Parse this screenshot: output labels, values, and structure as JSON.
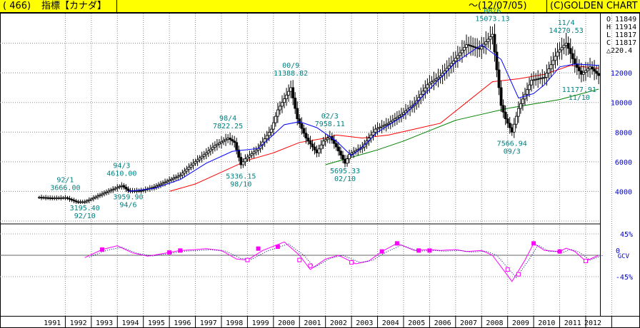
{
  "header": {
    "code": "( 466)",
    "name": "指標【カナダ】",
    "date": "～(12/07/05)",
    "brand": "(C)GOLDEN CHART"
  },
  "quote": {
    "open": "O 11849",
    "high": "H 11914",
    "low": "L 11817",
    "close": "C 11817",
    "change": "△220.4"
  },
  "colors": {
    "candle": "#000000",
    "ma_short": "#0000ff",
    "ma_mid": "#ff0000",
    "ma_long": "#008000",
    "gcv": "#ff00ff",
    "annotation": "#008080",
    "ylabel": "#0000cc"
  },
  "chart_data": [
    {
      "type": "line",
      "subtype": "candlestick-with-moving-averages",
      "x_axis": {
        "type": "date",
        "range": [
          "1991-01",
          "2012-07"
        ],
        "tick_labels": [
          "1991",
          "1992",
          "1993",
          "1994",
          "1995",
          "1996",
          "1997",
          "1998",
          "1999",
          "2000",
          "2001",
          "2002",
          "2003",
          "2004",
          "2005",
          "2006",
          "2007",
          "2008",
          "2009",
          "2010",
          "2011",
          "2012"
        ]
      },
      "y_axis": {
        "range": [
          2000,
          16000
        ],
        "tick_labels": [
          "4000",
          "6000",
          "8000",
          "10000",
          "12000"
        ],
        "position": "right"
      },
      "grid": true,
      "series": [
        {
          "kind": "price",
          "points": [
            [
              "1991-01",
              3600
            ],
            [
              "1991-07",
              3550
            ],
            [
              "1992-01",
              3580
            ],
            [
              "1992-06",
              3300
            ],
            [
              "1992-10",
              3300
            ],
            [
              "1993-01",
              3500
            ],
            [
              "1993-07",
              3900
            ],
            [
              "1994-03",
              4400
            ],
            [
              "1994-06",
              4050
            ],
            [
              "1994-12",
              4050
            ],
            [
              "1995-06",
              4300
            ],
            [
              "1995-12",
              4700
            ],
            [
              "1996-06",
              5100
            ],
            [
              "1996-12",
              5900
            ],
            [
              "1997-06",
              6600
            ],
            [
              "1997-10",
              7100
            ],
            [
              "1998-04",
              7600
            ],
            [
              "1998-07",
              7300
            ],
            [
              "1998-10",
              5800
            ],
            [
              "1998-12",
              6200
            ],
            [
              "1999-06",
              6900
            ],
            [
              "1999-12",
              8200
            ],
            [
              "2000-03",
              9500
            ],
            [
              "2000-09",
              11000
            ],
            [
              "2000-12",
              8900
            ],
            [
              "2001-04",
              7600
            ],
            [
              "2001-09",
              6600
            ],
            [
              "2001-12",
              7400
            ],
            [
              "2002-03",
              7700
            ],
            [
              "2002-06",
              7000
            ],
            [
              "2002-10",
              5900
            ],
            [
              "2002-12",
              6500
            ],
            [
              "2003-06",
              7000
            ],
            [
              "2003-12",
              8200
            ],
            [
              "2004-06",
              8600
            ],
            [
              "2004-12",
              9200
            ],
            [
              "2005-06",
              9900
            ],
            [
              "2005-12",
              11200
            ],
            [
              "2006-06",
              11800
            ],
            [
              "2006-12",
              12800
            ],
            [
              "2007-06",
              13900
            ],
            [
              "2007-12",
              13600
            ],
            [
              "2008-06",
              14600
            ],
            [
              "2008-10",
              9800
            ],
            [
              "2008-12",
              8900
            ],
            [
              "2009-03",
              8000
            ],
            [
              "2009-06",
              9600
            ],
            [
              "2009-12",
              11500
            ],
            [
              "2010-06",
              11700
            ],
            [
              "2010-12",
              13400
            ],
            [
              "2011-04",
              14000
            ],
            [
              "2011-08",
              12600
            ],
            [
              "2011-11",
              11900
            ],
            [
              "2012-03",
              12400
            ],
            [
              "2012-07",
              11817
            ]
          ]
        },
        {
          "kind": "ma_short",
          "points": [
            [
              "1994-06",
              4000
            ],
            [
              "1995-06",
              4200
            ],
            [
              "1996-06",
              4800
            ],
            [
              "1997-06",
              5900
            ],
            [
              "1998-06",
              6700
            ],
            [
              "1999-06",
              6900
            ],
            [
              "2000-06",
              8500
            ],
            [
              "2001-01",
              8700
            ],
            [
              "2001-09",
              8300
            ],
            [
              "2002-06",
              7400
            ],
            [
              "2003-01",
              6400
            ],
            [
              "2003-06",
              7000
            ],
            [
              "2004-01",
              8000
            ],
            [
              "2005-01",
              9100
            ],
            [
              "2006-01",
              10900
            ],
            [
              "2007-01",
              12700
            ],
            [
              "2008-01",
              13900
            ],
            [
              "2008-10",
              12900
            ],
            [
              "2009-06",
              10300
            ],
            [
              "2010-01",
              10600
            ],
            [
              "2010-06",
              11200
            ],
            [
              "2011-01",
              12400
            ],
            [
              "2011-08",
              12600
            ],
            [
              "2012-07",
              12500
            ]
          ]
        },
        {
          "kind": "ma_mid",
          "points": [
            [
              "1996-01",
              4000
            ],
            [
              "1997-01",
              4500
            ],
            [
              "1998-01",
              5300
            ],
            [
              "1999-01",
              6100
            ],
            [
              "2000-01",
              6600
            ],
            [
              "2001-01",
              7300
            ],
            [
              "2002-01",
              7600
            ],
            [
              "2002-06",
              7800
            ],
            [
              "2003-06",
              7600
            ],
            [
              "2004-06",
              7800
            ],
            [
              "2005-06",
              8200
            ],
            [
              "2006-06",
              8600
            ],
            [
              "2007-06",
              10000
            ],
            [
              "2008-06",
              11400
            ],
            [
              "2009-06",
              11600
            ],
            [
              "2010-06",
              11900
            ],
            [
              "2011-06",
              12500
            ],
            [
              "2012-07",
              12300
            ]
          ]
        },
        {
          "kind": "ma_long",
          "points": [
            [
              "2002-01",
              5800
            ],
            [
              "2003-01",
              6300
            ],
            [
              "2004-01",
              6800
            ],
            [
              "2005-01",
              7400
            ],
            [
              "2006-01",
              8100
            ],
            [
              "2007-01",
              8800
            ],
            [
              "2008-01",
              9200
            ],
            [
              "2009-01",
              9600
            ],
            [
              "2010-01",
              9900
            ],
            [
              "2011-01",
              10200
            ],
            [
              "2012-07",
              10900
            ]
          ]
        }
      ],
      "annotations": [
        {
          "date_label": "92/1",
          "value": "3666.00",
          "x": "1992-01",
          "y": 3666,
          "pos": "above"
        },
        {
          "date_label": "92/10",
          "value": "3195.40",
          "x": "1992-10",
          "y": 3195,
          "pos": "below"
        },
        {
          "date_label": "94/3",
          "value": "4610.00",
          "x": "1994-03",
          "y": 4610,
          "pos": "above"
        },
        {
          "date_label": "94/6",
          "value": "3959.90",
          "x": "1994-06",
          "y": 3960,
          "pos": "below"
        },
        {
          "date_label": "98/4",
          "value": "7822.25",
          "x": "1998-04",
          "y": 7822,
          "pos": "above"
        },
        {
          "date_label": "98/10",
          "value": "5336.15",
          "x": "1998-10",
          "y": 5336,
          "pos": "below"
        },
        {
          "date_label": "00/9",
          "value": "11388.82",
          "x": "2000-09",
          "y": 11389,
          "pos": "above"
        },
        {
          "date_label": "02/3",
          "value": "7958.11",
          "x": "2002-03",
          "y": 7958,
          "pos": "above"
        },
        {
          "date_label": "02/10",
          "value": "5695.33",
          "x": "2002-10",
          "y": 5695,
          "pos": "below"
        },
        {
          "date_label": "08/6",
          "value": "15073.13",
          "x": "2008-06",
          "y": 15073,
          "pos": "above"
        },
        {
          "date_label": "09/3",
          "value": "7566.94",
          "x": "2009-03",
          "y": 7567,
          "pos": "below"
        },
        {
          "date_label": "11/4",
          "value": "14270.53",
          "x": "2011-04",
          "y": 14271,
          "pos": "above"
        },
        {
          "date_label": "11/10",
          "value": "11177.91",
          "x": "2011-10",
          "y": 11178,
          "pos": "below"
        }
      ]
    },
    {
      "type": "line",
      "label": "GCV",
      "y_axis": {
        "range": [
          -60,
          60
        ],
        "tick_labels": [
          "45%",
          "0",
          "-45%"
        ],
        "position": "right"
      },
      "grid": true,
      "series": [
        {
          "kind": "gcv",
          "points": [
            [
              "1992-10",
              -5
            ],
            [
              "1993-06",
              12
            ],
            [
              "1994-01",
              20
            ],
            [
              "1994-08",
              5
            ],
            [
              "1995-03",
              -2
            ],
            [
              "1996-01",
              6
            ],
            [
              "1996-06",
              10
            ],
            [
              "1997-01",
              12
            ],
            [
              "1997-06",
              14
            ],
            [
              "1998-01",
              10
            ],
            [
              "1998-08",
              -8
            ],
            [
              "1999-01",
              -10
            ],
            [
              "1999-08",
              10
            ],
            [
              "2000-06",
              28
            ],
            [
              "2001-01",
              0
            ],
            [
              "2001-06",
              -30
            ],
            [
              "2002-01",
              -8
            ],
            [
              "2002-07",
              0
            ],
            [
              "2003-03",
              -18
            ],
            [
              "2003-09",
              -12
            ],
            [
              "2004-03",
              8
            ],
            [
              "2004-10",
              25
            ],
            [
              "2005-06",
              10
            ],
            [
              "2006-01",
              12
            ],
            [
              "2006-06",
              10
            ],
            [
              "2007-01",
              12
            ],
            [
              "2007-06",
              8
            ],
            [
              "2008-01",
              10
            ],
            [
              "2008-06",
              0
            ],
            [
              "2009-03",
              -55
            ],
            [
              "2009-09",
              -10
            ],
            [
              "2010-01",
              25
            ],
            [
              "2010-06",
              10
            ],
            [
              "2011-01",
              8
            ],
            [
              "2011-04",
              15
            ],
            [
              "2011-08",
              8
            ],
            [
              "2012-01",
              -12
            ],
            [
              "2012-07",
              0
            ]
          ]
        }
      ],
      "markers": [
        {
          "x": "1993-06",
          "y": 12,
          "shape": "filled"
        },
        {
          "x": "1996-01",
          "y": 6,
          "shape": "filled"
        },
        {
          "x": "1996-06",
          "y": 10,
          "shape": "filled"
        },
        {
          "x": "1999-01",
          "y": -10,
          "shape": "open"
        },
        {
          "x": "1999-06",
          "y": 14,
          "shape": "filled"
        },
        {
          "x": "2000-03",
          "y": 18,
          "shape": "filled"
        },
        {
          "x": "2001-01",
          "y": -10,
          "shape": "open"
        },
        {
          "x": "2001-06",
          "y": -22,
          "shape": "open"
        },
        {
          "x": "2003-01",
          "y": -15,
          "shape": "open"
        },
        {
          "x": "2004-03",
          "y": 8,
          "shape": "filled"
        },
        {
          "x": "2004-10",
          "y": 25,
          "shape": "filled"
        },
        {
          "x": "2005-08",
          "y": 10,
          "shape": "filled"
        },
        {
          "x": "2006-01",
          "y": 10,
          "shape": "filled"
        },
        {
          "x": "2009-01",
          "y": -30,
          "shape": "open"
        },
        {
          "x": "2009-06",
          "y": -40,
          "shape": "open"
        },
        {
          "x": "2010-01",
          "y": 25,
          "shape": "filled"
        },
        {
          "x": "2011-01",
          "y": 8,
          "shape": "filled"
        },
        {
          "x": "2012-01",
          "y": -12,
          "shape": "open"
        }
      ]
    }
  ]
}
